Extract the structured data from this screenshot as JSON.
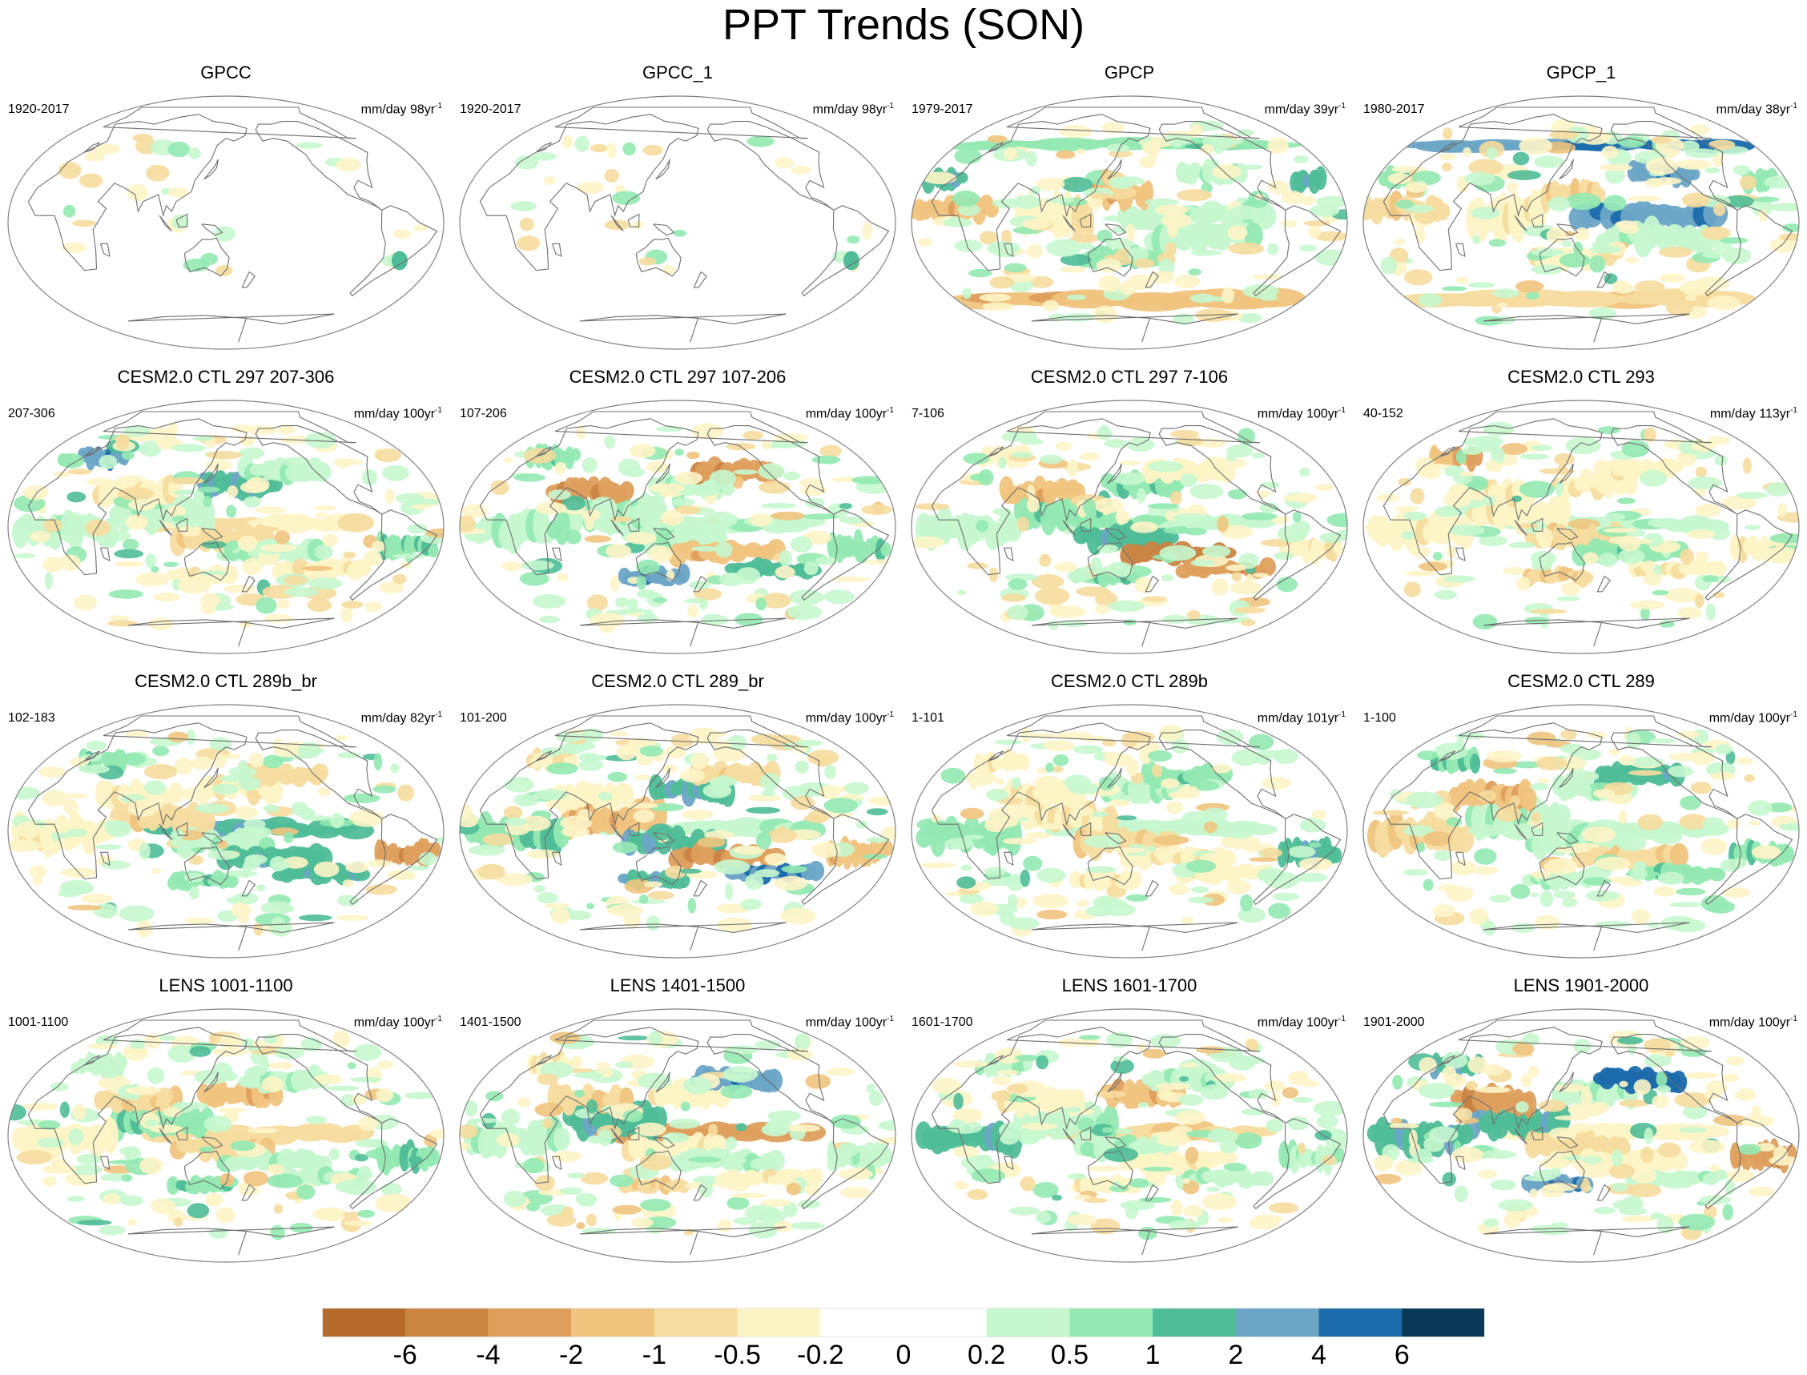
{
  "title": "PPT Trends (SON)",
  "units_prefix": "mm/day",
  "units_suffix": "yr",
  "units_exp": "-1",
  "panels": [
    {
      "title": "GPCC",
      "period": "1920-2017",
      "years": "98",
      "kind": "obs1"
    },
    {
      "title": "GPCC_1",
      "period": "1920-2017",
      "years": "98",
      "kind": "obs1"
    },
    {
      "title": "GPCP",
      "period": "1979-2017",
      "years": "39",
      "kind": "obs2"
    },
    {
      "title": "GPCP_1",
      "period": "1980-2017",
      "years": "38",
      "kind": "obs2"
    },
    {
      "title": "CESM2.0 CTL 297 207-306",
      "period": "207-306",
      "years": "100",
      "kind": "model"
    },
    {
      "title": "CESM2.0 CTL 297 107-206",
      "period": "107-206",
      "years": "100",
      "kind": "model"
    },
    {
      "title": "CESM2.0 CTL 297 7-106",
      "period": "7-106",
      "years": "100",
      "kind": "model"
    },
    {
      "title": "CESM2.0 CTL 293",
      "period": "40-152",
      "years": "113",
      "kind": "model"
    },
    {
      "title": "CESM2.0 CTL 289b_br",
      "period": "102-183",
      "years": "82",
      "kind": "model"
    },
    {
      "title": "CESM2.0 CTL 289_br",
      "period": "101-200",
      "years": "100",
      "kind": "model"
    },
    {
      "title": "CESM2.0 CTL 289b",
      "period": "1-101",
      "years": "101",
      "kind": "model"
    },
    {
      "title": "CESM2.0 CTL 289",
      "period": "1-100",
      "years": "100",
      "kind": "model"
    },
    {
      "title": "LENS 1001-1100",
      "period": "1001-1100",
      "years": "100",
      "kind": "model"
    },
    {
      "title": "LENS 1401-1500",
      "period": "1401-1500",
      "years": "100",
      "kind": "model"
    },
    {
      "title": "LENS 1601-1700",
      "period": "1601-1700",
      "years": "100",
      "kind": "model"
    },
    {
      "title": "LENS 1901-2000",
      "period": "1901-2000",
      "years": "100",
      "kind": "model"
    }
  ],
  "colorbar": {
    "colors": [
      "#b5692b",
      "#c98442",
      "#de9f5d",
      "#f0c47e",
      "#f6dc9f",
      "#fdf4c6",
      "#ffffff",
      "#ffffff",
      "#c6f7cf",
      "#94e9b2",
      "#4fbd97",
      "#6ca5c6",
      "#1a6aac",
      "#0a3857"
    ],
    "labels": [
      "-6",
      "-4",
      "-2",
      "-1",
      "-0.5",
      "-0.2",
      "0",
      "0.2",
      "0.5",
      "1",
      "2",
      "4",
      "6"
    ]
  },
  "style": {
    "coast": "#6e6e6e",
    "neg": [
      "#fdf4c6",
      "#f6dc9f",
      "#f0c47e",
      "#de9f5d",
      "#c98442"
    ],
    "pos": [
      "#c6f7cf",
      "#94e9b2",
      "#4fbd97",
      "#6ca5c6",
      "#1a6aac"
    ]
  }
}
